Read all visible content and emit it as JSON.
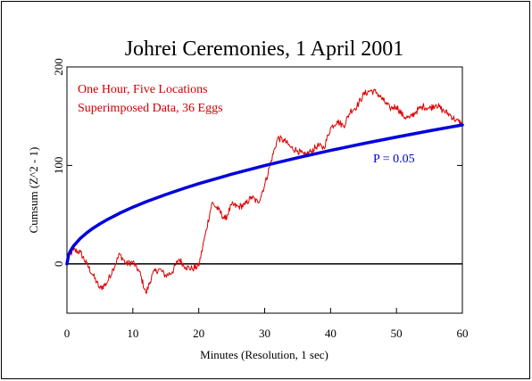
{
  "chart_data": {
    "type": "line",
    "title": "Johrei Ceremonies, 1 April 2001",
    "xlabel": "Minutes (Resolution, 1 sec)",
    "ylabel": "Cumsum (Z^2 - 1)",
    "xlim": [
      0,
      60
    ],
    "ylim": [
      -50,
      200
    ],
    "x_ticks": [
      0,
      10,
      20,
      30,
      40,
      50,
      60
    ],
    "y_ticks": [
      0,
      100,
      200
    ],
    "grid": false,
    "annotations": [
      {
        "text": "One Hour, Five Locations",
        "color": "#cc0000"
      },
      {
        "text": "Superimposed Data, 36 Eggs",
        "color": "#cc0000"
      },
      {
        "text": "P = 0.05",
        "color": "#0000cc"
      }
    ],
    "series": [
      {
        "color": "#dd0000",
        "x": [
          0,
          1,
          2,
          3,
          4,
          5,
          6,
          7,
          8,
          9,
          10,
          11,
          12,
          13,
          14,
          15,
          16,
          17,
          18,
          19,
          20,
          21,
          22,
          23,
          24,
          25,
          26,
          27,
          28,
          29,
          30,
          31,
          32,
          33,
          34,
          35,
          36,
          37,
          38,
          39,
          40,
          41,
          42,
          43,
          44,
          45,
          46,
          47,
          48,
          49,
          50,
          51,
          52,
          53,
          54,
          55,
          56,
          57,
          58,
          59,
          60
        ],
        "y": [
          5,
          14,
          12,
          0,
          -12,
          -25,
          -20,
          -5,
          10,
          0,
          2,
          -8,
          -30,
          -10,
          -5,
          -12,
          -8,
          5,
          -3,
          -5,
          -2,
          30,
          62,
          55,
          45,
          60,
          58,
          60,
          68,
          62,
          80,
          105,
          128,
          125,
          118,
          115,
          110,
          114,
          120,
          118,
          138,
          145,
          140,
          155,
          160,
          172,
          176,
          174,
          166,
          158,
          160,
          150,
          148,
          155,
          160,
          158,
          162,
          156,
          152,
          146,
          142
        ]
      },
      {
        "name": "P = 0.05",
        "color": "#0000dd",
        "x": [
          0,
          0.25,
          0.5,
          1,
          2,
          3,
          4,
          5,
          6,
          8,
          10,
          12,
          15,
          18,
          20,
          25,
          30,
          35,
          40,
          45,
          50,
          55,
          60
        ],
        "y": [
          0,
          9.1,
          12.9,
          18.2,
          25.8,
          31.6,
          36.4,
          40.7,
          44.6,
          51.5,
          57.6,
          63.1,
          70.5,
          77.3,
          81.5,
          91.1,
          99.8,
          107.8,
          115.2,
          122.2,
          128.8,
          135.1,
          141.1
        ]
      }
    ]
  }
}
